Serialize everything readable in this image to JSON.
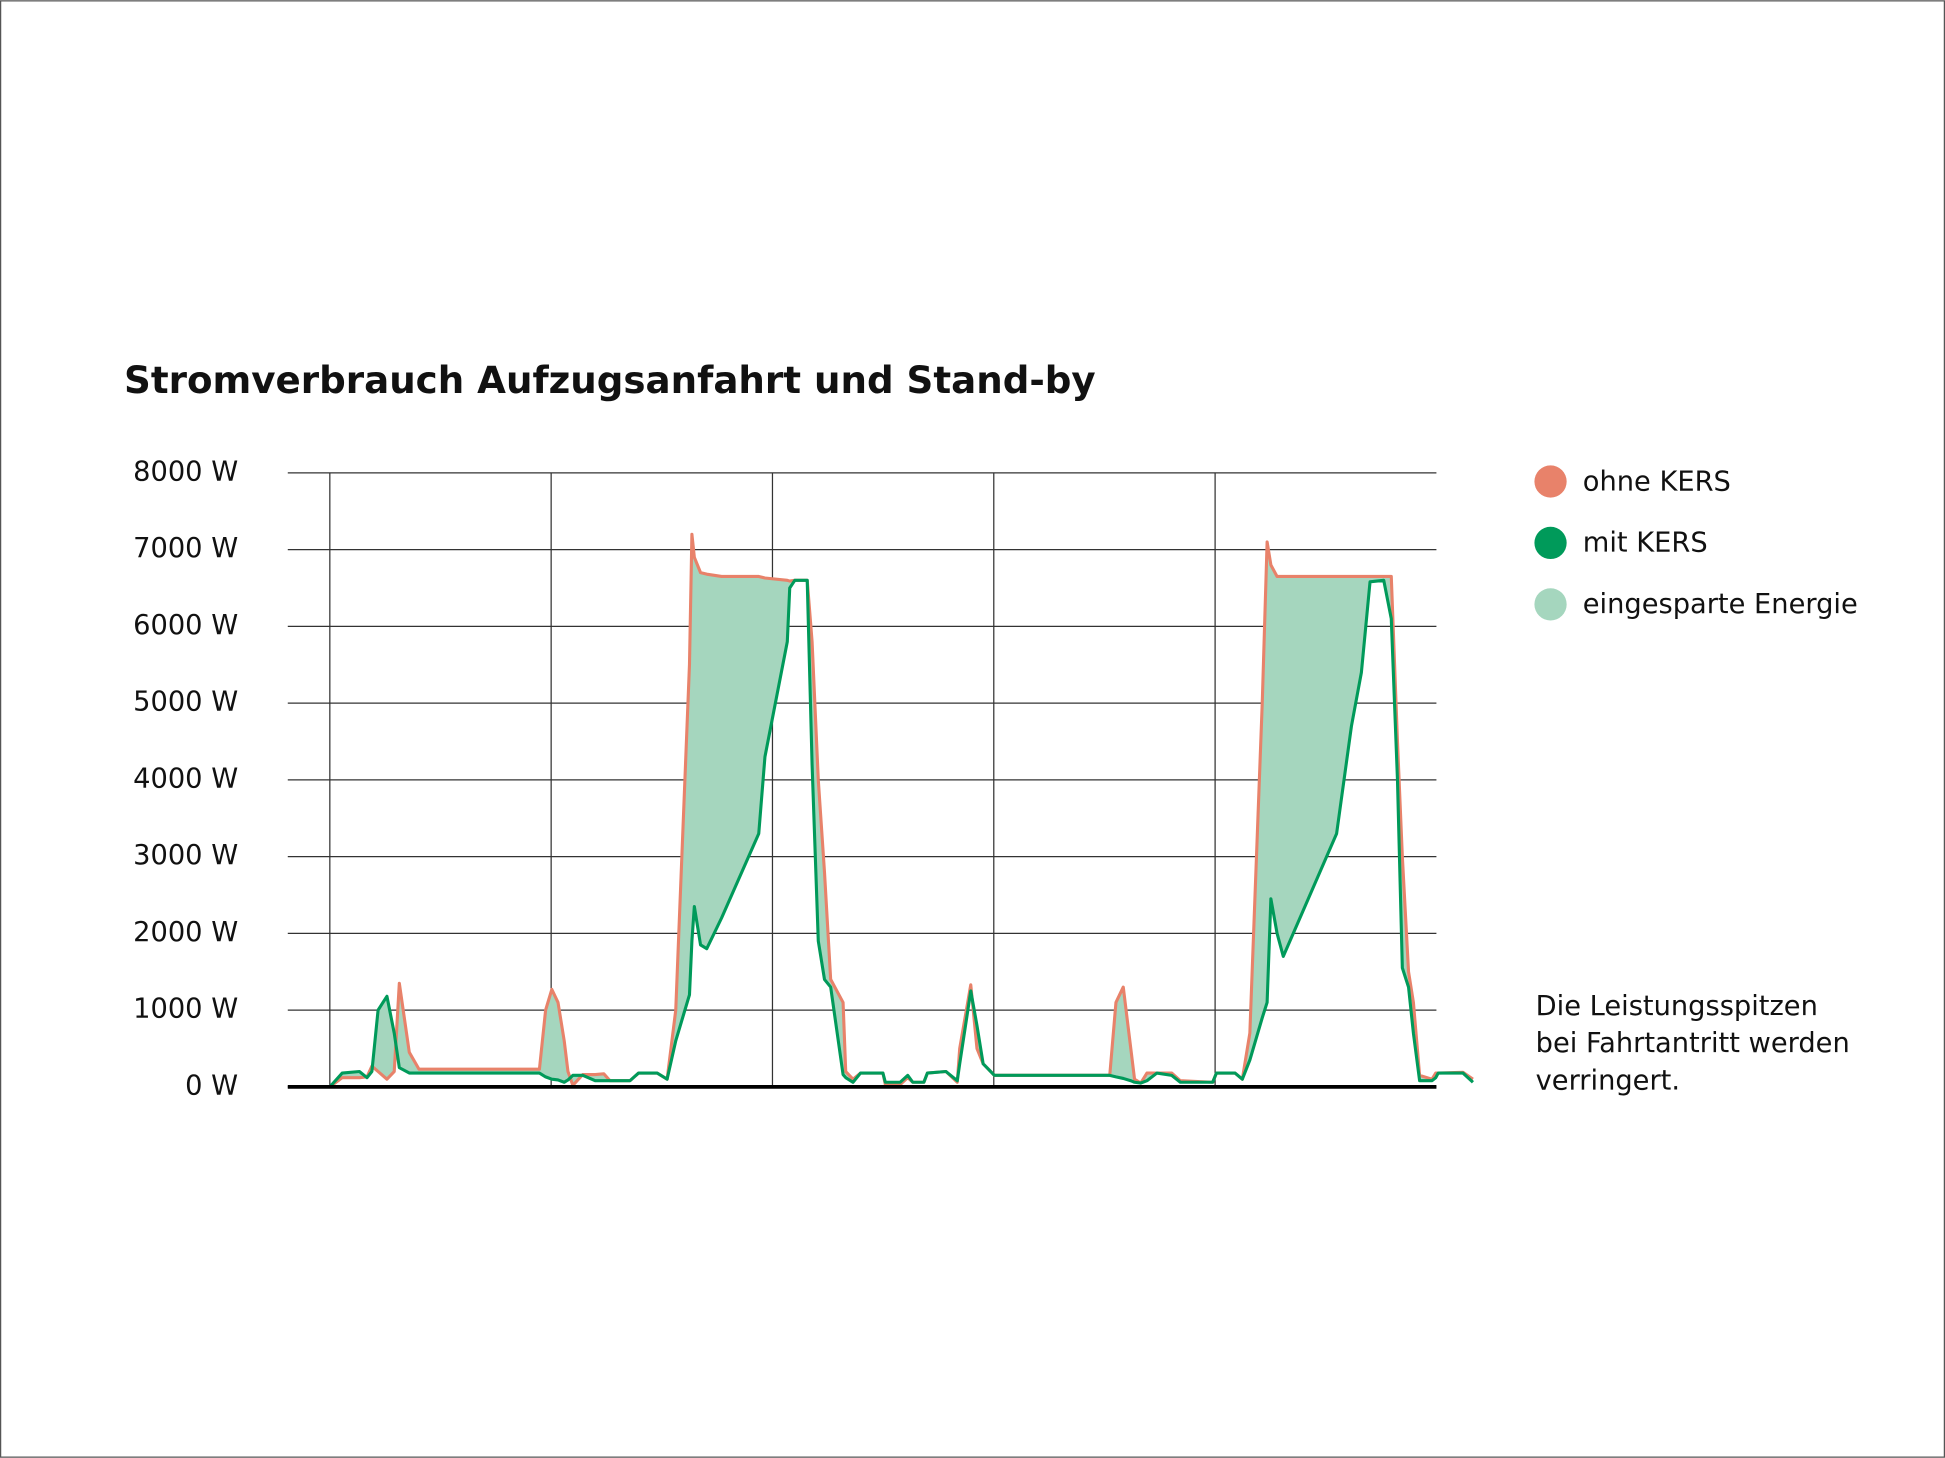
{
  "chart_data": {
    "type": "line",
    "title": "Stromverbrauch Aufzugsanfahrt und Stand-by",
    "x": [
      100,
      105.6,
      113.4,
      116.8,
      119.0,
      121.8,
      125.8,
      129.1,
      131.4,
      135.9,
      140.3,
      194.7,
      197.5,
      200.3,
      203.1,
      205.9,
      207.6,
      209.8,
      214.3,
      219.9,
      223.8,
      226.6,
      235.6,
      239.5,
      247.9,
      252.4,
      256.3,
      262.5,
      263.6,
      264.7,
      267.5,
      270.3,
      277.0,
      293.8,
      296.6,
      306.7,
      307.8,
      310.1,
      315.7,
      317.9,
      320.7,
      323.5,
      326.3,
      331.9,
      333.1,
      336.4,
      339.8,
      349.9,
      351.0,
      357.7,
      361.1,
      363.4,
      368.4,
      370.0,
      378.4,
      383.5,
      384.6,
      389.6,
      392.4,
      395.2,
      400.3,
      452.4,
      455.2,
      458.5,
      461.9,
      463.6,
      466.4,
      469.2,
      473.7,
      480.4,
      484.3,
      498.9,
      500.6,
      509.0,
      512.3,
      515.7,
      521.3,
      523.5,
      525.2,
      528.0,
      530.8,
      554.9,
      561.6,
      566.1,
      570.0,
      576.2,
      579.6,
      582.4,
      584.6,
      587.4,
      589.6,
      592.4,
      598.0,
      599.7,
      600.8,
      612.0,
      616.5
    ],
    "series": [
      {
        "name": "ohne KERS",
        "color": "#e8826a",
        "values": [
          0,
          120,
          120,
          130,
          270,
          200,
          100,
          200,
          1350,
          450,
          230,
          230,
          1000,
          1270,
          1100,
          600,
          200,
          20,
          160,
          160,
          170,
          80,
          80,
          180,
          180,
          100,
          1000,
          5500,
          7200,
          6900,
          6700,
          6680,
          6650,
          6650,
          6630,
          6600,
          6590,
          6600,
          6600,
          5800,
          4000,
          2800,
          1400,
          1100,
          200,
          100,
          180,
          180,
          30,
          30,
          120,
          60,
          60,
          180,
          200,
          60,
          500,
          1330,
          500,
          300,
          150,
          150,
          1100,
          1300,
          500,
          100,
          50,
          180,
          180,
          180,
          80,
          60,
          180,
          180,
          100,
          700,
          5000,
          7100,
          6800,
          6650,
          6650,
          6650,
          6650,
          6650,
          6650,
          6650,
          6650,
          4500,
          3000,
          1500,
          1100,
          150,
          100,
          180,
          180,
          190,
          100
        ]
      },
      {
        "name": "mit KERS",
        "color": "#009a5a",
        "values": [
          0,
          180,
          200,
          120,
          200,
          1000,
          1180,
          700,
          250,
          180,
          180,
          180,
          130,
          100,
          90,
          60,
          90,
          150,
          150,
          80,
          80,
          80,
          80,
          180,
          180,
          100,
          600,
          1200,
          1900,
          2350,
          1850,
          1800,
          2200,
          3300,
          4300,
          5800,
          6500,
          6600,
          6600,
          4200,
          1900,
          1400,
          1300,
          160,
          120,
          60,
          180,
          180,
          60,
          60,
          150,
          60,
          60,
          180,
          200,
          80,
          300,
          1250,
          800,
          300,
          150,
          150,
          130,
          110,
          80,
          60,
          50,
          80,
          180,
          150,
          60,
          60,
          180,
          180,
          100,
          350,
          900,
          1100,
          2450,
          2000,
          1700,
          3300,
          4700,
          5400,
          6580,
          6600,
          6100,
          4000,
          1550,
          1300,
          700,
          80,
          80,
          120,
          180,
          180,
          60
        ]
      }
    ],
    "fill_between": {
      "name": "eingesparte Energie",
      "color": "#a5d6be"
    },
    "xlim": [
      81,
      600
    ],
    "xticks": [
      100,
      200,
      300,
      400,
      500
    ],
    "ylim": [
      0,
      8000
    ],
    "yticks": [
      {
        "value": 0,
        "label": "0 W"
      },
      {
        "value": 1000,
        "label": "1000 W"
      },
      {
        "value": 2000,
        "label": "2000 W"
      },
      {
        "value": 3000,
        "label": "3000 W"
      },
      {
        "value": 4000,
        "label": "4000 W"
      },
      {
        "value": 5000,
        "label": "5000 W"
      },
      {
        "value": 6000,
        "label": "6000 W"
      },
      {
        "value": 7000,
        "label": "7000 W"
      },
      {
        "value": 8000,
        "label": "8000 W"
      }
    ],
    "grid": true,
    "legend": "right",
    "annotation": [
      "Die Leistungsspitzen",
      "bei Fahrtantritt werden",
      "verringert."
    ]
  }
}
